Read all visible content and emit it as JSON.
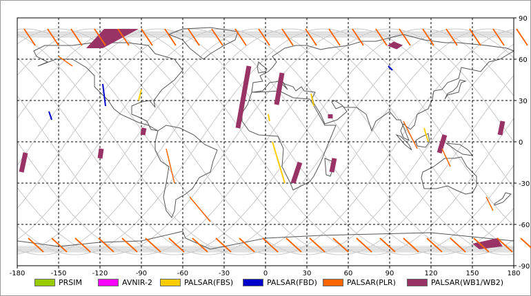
{
  "map": {
    "x_ticks": [
      "-180",
      "-150",
      "-120",
      "-90",
      "-60",
      "-30",
      "0",
      "30",
      "60",
      "90",
      "120",
      "150",
      "180"
    ],
    "y_ticks": [
      "90",
      "60",
      "30",
      "0",
      "-30",
      "-60",
      "-90"
    ],
    "colors": {
      "PRSIM": "#99cc00",
      "AVNIR-2": "#ff00ff",
      "PALSAR(FBS)": "#ffcc00",
      "PALSAR(FBD)": "#0000cc",
      "PALSAR(PLR)": "#ff6600",
      "PALSAR(WB1/WB2)": "#993366"
    }
  },
  "legend": [
    {
      "label": "PRSIM",
      "color": "#99cc00"
    },
    {
      "label": "AVNIR-2",
      "color": "#ff00ff"
    },
    {
      "label": "PALSAR(FBS)",
      "color": "#ffcc00"
    },
    {
      "label": "PALSAR(FBD)",
      "color": "#0000cc"
    },
    {
      "label": "PALSAR(PLR)",
      "color": "#ff6600"
    },
    {
      "label": "PALSAR(WB1/WB2)",
      "color": "#993366"
    }
  ]
}
